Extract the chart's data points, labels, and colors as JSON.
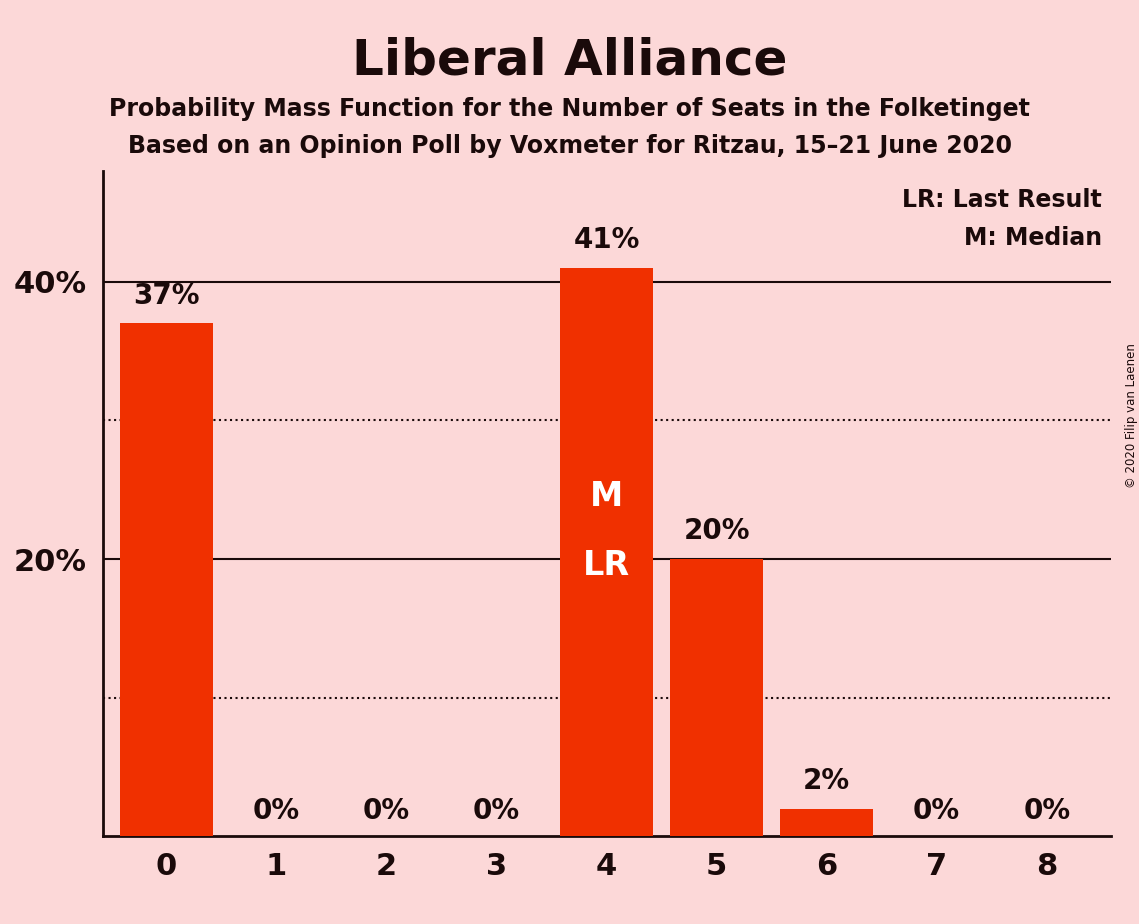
{
  "title": "Liberal Alliance",
  "subtitle1": "Probability Mass Function for the Number of Seats in the Folketinget",
  "subtitle2": "Based on an Opinion Poll by Voxmeter for Ritzau, 15–21 June 2020",
  "categories": [
    0,
    1,
    2,
    3,
    4,
    5,
    6,
    7,
    8
  ],
  "values": [
    0.37,
    0.0,
    0.0,
    0.0,
    0.41,
    0.2,
    0.02,
    0.0,
    0.0
  ],
  "bar_color": "#f03000",
  "background_color": "#fcd8d8",
  "title_color": "#1a0a0a",
  "bar_labels": [
    "37%",
    "0%",
    "0%",
    "0%",
    "41%",
    "20%",
    "2%",
    "0%",
    "0%"
  ],
  "ylim": [
    0,
    0.48
  ],
  "legend_text1": "LR: Last Result",
  "legend_text2": "M: Median",
  "median_seat": 4,
  "last_result_seat": 4,
  "copyright_text": "© 2020 Filip van Laenen",
  "solid_hlines": [
    0.2,
    0.4
  ],
  "dotted_hlines": [
    0.1,
    0.3
  ]
}
